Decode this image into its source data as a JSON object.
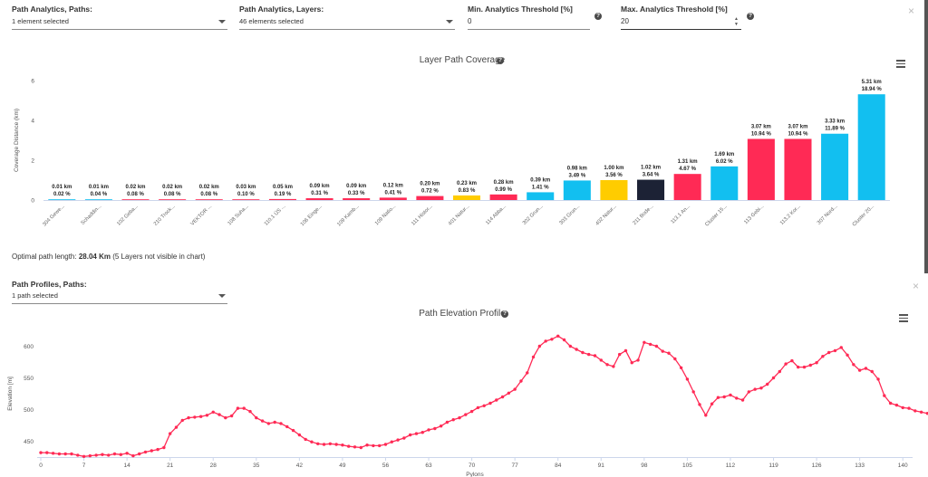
{
  "filters": {
    "paths_label": "Path Analytics, Paths:",
    "paths_value": "1 element selected",
    "layers_label": "Path Analytics, Layers:",
    "layers_value": "46 elements selected",
    "min_label": "Min. Analytics Threshold [%]",
    "min_value": "0",
    "max_label": "Max. Analytics Threshold [%]",
    "max_value": "20",
    "help_glyph": "?",
    "close_glyph": "×"
  },
  "coverage": {
    "title": "Layer Path Coverage",
    "optimal_prefix": "Optimal path length: ",
    "optimal_value": "28.04 Km",
    "optimal_suffix": " (5 Layers not visible in chart)"
  },
  "profiles": {
    "paths_label": "Path Profiles, Paths:",
    "paths_value": "1 path selected",
    "title": "Path Elevation Profile"
  },
  "colors": {
    "red": "#ff2a55",
    "blue": "#12bff0",
    "yellow": "#ffcc00",
    "navy": "#1c2235",
    "line": "#ff2a55"
  },
  "chart_data": [
    {
      "type": "bar",
      "title": "Layer Path Coverage",
      "ylabel": "Coverage Distance (km)",
      "ylim": [
        0,
        6
      ],
      "yticks": [
        0,
        2,
        4,
        6
      ],
      "grid": false,
      "categories": [
        "304 Gewe...",
        "Schaddin...",
        "102 Geba...",
        "210 Trock...",
        "VEKTOR ...",
        "108 Suha...",
        "110.1 ÜS ...",
        "106 Einge...",
        "109 Kamb...",
        "109 Natio...",
        "111 Histor...",
        "401 Natur...",
        "114 Abba...",
        "302 Grun...",
        "303 Grun...",
        "402 Natur...",
        "211 Bode...",
        "113.1 An...",
        "Cluster 15...",
        "113 Gebi...",
        "113.2 Kor...",
        "307 Nord...",
        "Cluster 20..."
      ],
      "values": [
        0.01,
        0.01,
        0.02,
        0.02,
        0.02,
        0.03,
        0.05,
        0.09,
        0.09,
        0.12,
        0.2,
        0.23,
        0.28,
        0.39,
        0.98,
        1.0,
        1.02,
        1.31,
        1.69,
        3.07,
        3.07,
        3.33,
        5.31
      ],
      "value_labels": [
        "0.01 km",
        "0.01 km",
        "0.02 km",
        "0.02 km",
        "0.02 km",
        "0.03 km",
        "0.05 km",
        "0.09 km",
        "0.09 km",
        "0.12 km",
        "0.20 km",
        "0.23 km",
        "0.28 km",
        "0.39 km",
        "0.98 km",
        "1.00 km",
        "1.02 km",
        "1.31 km",
        "1.69 km",
        "3.07 km",
        "3.07 km",
        "3.33 km",
        "5.31 km"
      ],
      "percent_labels": [
        "0.02 %",
        "0.04 %",
        "0.08 %",
        "0.08 %",
        "0.08 %",
        "0.10 %",
        "0.19 %",
        "0.31 %",
        "0.33 %",
        "0.41 %",
        "0.72 %",
        "0.83 %",
        "0.99 %",
        "1.41 %",
        "3.49 %",
        "3.56 %",
        "3.64 %",
        "4.67 %",
        "6.02 %",
        "10.94 %",
        "10.94 %",
        "11.89 %",
        "18.94 %"
      ],
      "bar_colors": [
        "#12bff0",
        "#12bff0",
        "#ff2a55",
        "#ff2a55",
        "#ff2a55",
        "#ff2a55",
        "#ff2a55",
        "#ff2a55",
        "#ff2a55",
        "#ff2a55",
        "#ff2a55",
        "#ffcc00",
        "#ff2a55",
        "#12bff0",
        "#12bff0",
        "#ffcc00",
        "#1c2235",
        "#ff2a55",
        "#12bff0",
        "#ff2a55",
        "#ff2a55",
        "#12bff0",
        "#12bff0"
      ]
    },
    {
      "type": "line",
      "title": "Path Elevation Profile",
      "xlabel": "Pylons",
      "ylabel": "Elevation [m]",
      "xlim": [
        0,
        141
      ],
      "ylim": [
        425,
        625
      ],
      "xticks": [
        0,
        7,
        14,
        21,
        28,
        35,
        42,
        49,
        56,
        63,
        70,
        77,
        84,
        91,
        98,
        105,
        112,
        119,
        126,
        133,
        140
      ],
      "yticks": [
        450,
        500,
        550,
        600
      ],
      "grid": false,
      "x_step": 1,
      "series": [
        {
          "values": [
            432,
            432,
            431,
            430,
            430,
            430,
            428,
            426,
            427,
            428,
            429,
            428,
            430,
            429,
            431,
            427,
            430,
            433,
            435,
            437,
            440,
            462,
            472,
            483,
            487,
            488,
            489,
            491,
            496,
            492,
            487,
            490,
            502,
            502,
            497,
            487,
            482,
            478,
            480,
            478,
            473,
            467,
            460,
            453,
            449,
            446,
            445,
            446,
            445,
            444,
            442,
            441,
            440,
            444,
            443,
            443,
            445,
            449,
            452,
            455,
            460,
            462,
            464,
            468,
            470,
            474,
            480,
            484,
            487,
            492,
            497,
            503,
            506,
            510,
            515,
            520,
            526,
            532,
            545,
            558,
            583,
            600,
            608,
            611,
            616,
            610,
            600,
            595,
            590,
            587,
            585,
            578,
            571,
            568,
            587,
            593,
            574,
            578,
            606,
            603,
            600,
            592,
            589,
            580,
            566,
            548,
            528,
            508,
            491,
            509,
            519,
            520,
            523,
            518,
            515,
            528,
            532,
            534,
            540,
            550,
            560,
            572,
            577,
            567,
            567,
            570,
            574,
            584,
            590,
            593,
            598,
            586,
            571,
            562,
            565,
            560,
            548,
            522,
            510,
            507,
            503,
            502,
            498,
            496,
            494
          ]
        }
      ]
    }
  ]
}
